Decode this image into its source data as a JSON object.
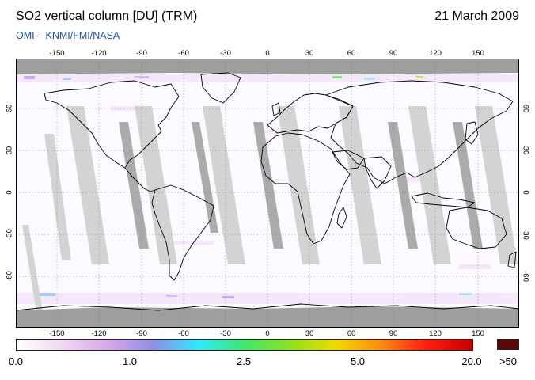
{
  "header": {
    "title": "SO2 vertical column [DU] (TRM)",
    "date": "21 March 2009",
    "subtitle": "OMI  –  KNMI/FMI/NASA"
  },
  "map": {
    "lon_ticks": [
      "-150",
      "-120",
      "-90",
      "-60",
      "-30",
      "0",
      "30",
      "60",
      "90",
      "120",
      "150"
    ],
    "lat_ticks": [
      "60",
      "30",
      "0",
      "-30",
      "-60"
    ],
    "no_data_color": "#d3d3d3",
    "polar_color": "#9e9e9e",
    "coastline_color": "#000000"
  },
  "colorbar": {
    "labels": [
      "0.0",
      "1.0",
      "2.5",
      "5.0",
      "20.0"
    ],
    "over_label": ">50",
    "over_color": "#5b0a0a",
    "stops": [
      "#ffffff",
      "#f0d8f2",
      "#d8a8e8",
      "#8f8ee6",
      "#31e8ff",
      "#3fe86a",
      "#8de21f",
      "#f0da00",
      "#ff8a10",
      "#ff1c10",
      "#c40000"
    ]
  }
}
